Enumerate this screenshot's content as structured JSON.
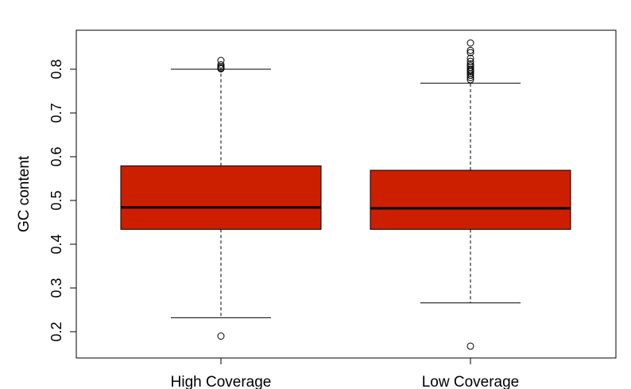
{
  "chart_data": {
    "type": "boxplot",
    "ylabel": "GC content",
    "ylim": [
      0.15,
      0.88
    ],
    "yticks": [
      0.2,
      0.3,
      0.4,
      0.5,
      0.6,
      0.7,
      0.8
    ],
    "ytick_labels": [
      "0.2",
      "0.3",
      "0.4",
      "0.5",
      "0.6",
      "0.7",
      "0.8"
    ],
    "box_color": "#cc1f00",
    "categories": [
      "High Coverage",
      "Low Coverage"
    ],
    "boxes": [
      {
        "name": "High Coverage",
        "whisker_low": 0.232,
        "q1": 0.434,
        "median": 0.484,
        "q3": 0.579,
        "whisker_high": 0.8,
        "outliers": [
          0.19,
          0.801,
          0.803,
          0.806,
          0.81,
          0.82
        ]
      },
      {
        "name": "Low Coverage",
        "whisker_low": 0.266,
        "q1": 0.434,
        "median": 0.482,
        "q3": 0.569,
        "whisker_high": 0.768,
        "outliers": [
          0.167,
          0.776,
          0.781,
          0.786,
          0.79,
          0.794,
          0.797,
          0.8,
          0.804,
          0.808,
          0.812,
          0.818,
          0.825,
          0.838,
          0.843,
          0.86
        ]
      }
    ]
  }
}
